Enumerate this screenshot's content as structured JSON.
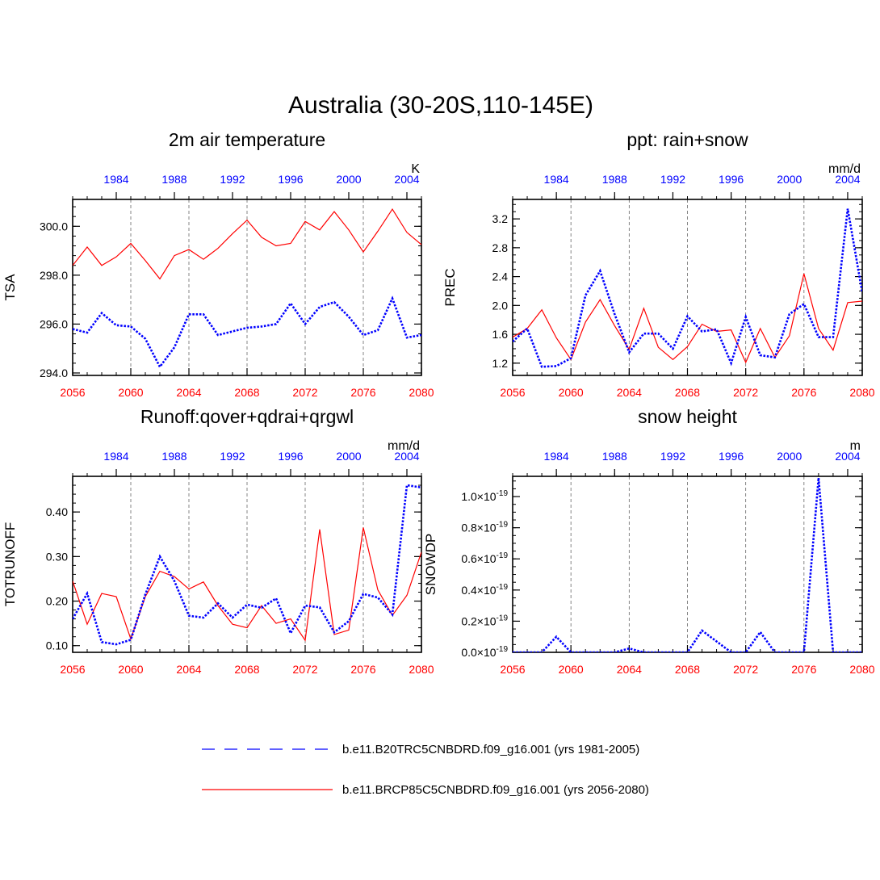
{
  "title": "Australia (30-20S,110-145E)",
  "colors": {
    "red": "#ff0000",
    "blue": "#0000ff",
    "axis": "#000000",
    "grid": "#666666"
  },
  "legend": [
    {
      "label": "b.e11.B20TRC5CNBDRD.f09_g16.001 (yrs 1981-2005)",
      "color": "#0000ff",
      "style": "dashed"
    },
    {
      "label": "b.e11.BRCP85C5CNBDRD.f09_g16.001 (yrs 2056-2080)",
      "color": "#ff0000",
      "style": "solid"
    }
  ],
  "chart_data": [
    {
      "type": "line",
      "title": "2m air temperature",
      "ylabel": "TSA",
      "units": "K",
      "ylim": [
        293.9,
        301.1
      ],
      "yticks": [
        294.0,
        296.0,
        298.0,
        300.0
      ],
      "ytick_labels": [
        "294.0",
        "296.0",
        "298.0",
        "300.0"
      ],
      "yminor": 0.4,
      "xlim": [
        2056,
        2080
      ],
      "xticks_bottom": [
        2056,
        2060,
        2064,
        2068,
        2072,
        2076,
        2080
      ],
      "xticks_top": [
        1984,
        1988,
        1992,
        1996,
        2000,
        2004
      ],
      "grid_x": [
        2060,
        2064,
        2068,
        2072,
        2076
      ],
      "series": [
        {
          "name": "b.e11.BRCP85C5CNBDRD.f09_g16.001",
          "years": "2056-2080",
          "color": "red",
          "style": "solid",
          "values": [
            298.4,
            299.15,
            298.4,
            298.75,
            299.3,
            298.6,
            297.85,
            298.8,
            299.05,
            298.65,
            299.1,
            299.7,
            300.25,
            299.55,
            299.2,
            299.3,
            300.2,
            299.85,
            300.6,
            299.85,
            298.95,
            299.8,
            300.7,
            299.75,
            299.25
          ]
        },
        {
          "name": "b.e11.B20TRC5CNBDRD.f09_g16.001",
          "years": "1981-2005",
          "color": "blue",
          "style": "dashed",
          "values": [
            295.8,
            295.65,
            296.45,
            295.95,
            295.9,
            295.4,
            294.25,
            295.05,
            296.4,
            296.4,
            295.55,
            295.7,
            295.85,
            295.9,
            296.0,
            296.85,
            296.0,
            296.7,
            296.9,
            296.3,
            295.55,
            295.75,
            297.05,
            295.45,
            295.55
          ]
        }
      ]
    },
    {
      "type": "line",
      "title": "ppt: rain+snow",
      "ylabel": "PREC",
      "units": "mm/d",
      "ylim": [
        1.03,
        3.47
      ],
      "yticks": [
        1.2,
        1.6,
        2.0,
        2.4,
        2.8,
        3.2
      ],
      "ytick_labels": [
        "1.2",
        "1.6",
        "2.0",
        "2.4",
        "2.8",
        "3.2"
      ],
      "yminor": 0.1,
      "xlim": [
        2056,
        2080
      ],
      "xticks_bottom": [
        2056,
        2060,
        2064,
        2068,
        2072,
        2076,
        2080
      ],
      "xticks_top": [
        1984,
        1988,
        1992,
        1996,
        2000,
        2004
      ],
      "grid_x": [
        2060,
        2064,
        2068,
        2072,
        2076
      ],
      "series": [
        {
          "name": "b.e11.BRCP85C5CNBDRD.f09_g16.001",
          "years": "2056-2080",
          "color": "red",
          "style": "solid",
          "values": [
            1.56,
            1.68,
            1.94,
            1.55,
            1.25,
            1.77,
            2.08,
            1.72,
            1.39,
            1.96,
            1.42,
            1.25,
            1.43,
            1.74,
            1.64,
            1.66,
            1.21,
            1.68,
            1.28,
            1.58,
            2.44,
            1.68,
            1.38,
            2.04,
            2.06
          ]
        },
        {
          "name": "b.e11.B20TRC5CNBDRD.f09_g16.001",
          "years": "1981-2005",
          "color": "blue",
          "style": "dashed",
          "values": [
            1.5,
            1.68,
            1.15,
            1.16,
            1.27,
            2.14,
            2.48,
            1.88,
            1.35,
            1.61,
            1.61,
            1.4,
            1.85,
            1.64,
            1.67,
            1.2,
            1.84,
            1.31,
            1.28,
            1.88,
            2.02,
            1.56,
            1.56,
            3.34,
            2.18
          ]
        }
      ]
    },
    {
      "type": "line",
      "title": "Runoff:qover+qdrai+qrgwl",
      "ylabel": "TOTRUNOFF",
      "units": "mm/d",
      "ylim": [
        0.085,
        0.48
      ],
      "yticks": [
        0.1,
        0.2,
        0.3,
        0.4
      ],
      "ytick_labels": [
        "0.10",
        "0.20",
        "0.30",
        "0.40"
      ],
      "yminor": 0.02,
      "xlim": [
        2056,
        2080
      ],
      "xticks_bottom": [
        2056,
        2060,
        2064,
        2068,
        2072,
        2076,
        2080
      ],
      "xticks_top": [
        1984,
        1988,
        1992,
        1996,
        2000,
        2004
      ],
      "grid_x": [
        2060,
        2064,
        2068,
        2072,
        2076
      ],
      "series": [
        {
          "name": "b.e11.BRCP85C5CNBDRD.f09_g16.001",
          "years": "2056-2080",
          "color": "red",
          "style": "solid",
          "values": [
            0.245,
            0.148,
            0.217,
            0.21,
            0.115,
            0.21,
            0.267,
            0.255,
            0.227,
            0.243,
            0.19,
            0.148,
            0.14,
            0.19,
            0.15,
            0.16,
            0.112,
            0.361,
            0.125,
            0.135,
            0.365,
            0.225,
            0.168,
            0.213,
            0.31
          ]
        },
        {
          "name": "b.e11.B20TRC5CNBDRD.f09_g16.001",
          "years": "1981-2005",
          "color": "blue",
          "style": "dashed",
          "values": [
            0.16,
            0.217,
            0.108,
            0.103,
            0.113,
            0.215,
            0.3,
            0.245,
            0.167,
            0.163,
            0.195,
            0.163,
            0.192,
            0.185,
            0.206,
            0.128,
            0.19,
            0.186,
            0.13,
            0.155,
            0.216,
            0.208,
            0.17,
            0.46,
            0.455
          ]
        }
      ]
    },
    {
      "type": "line",
      "title": "snow height",
      "ylabel": "SNOWDP",
      "units": "m",
      "yscale": "x10^-19",
      "ylim": [
        0.0,
        1.13
      ],
      "yticks": [
        0.0,
        0.2,
        0.4,
        0.6,
        0.8,
        1.0
      ],
      "ytick_labels": [
        "0.0",
        "0.2",
        "0.4",
        "0.6",
        "0.8",
        "1.0"
      ],
      "ytick_suffix": "×10",
      "ytick_exponent": "-19",
      "yminor": 0.05,
      "xlim": [
        2056,
        2080
      ],
      "xticks_bottom": [
        2056,
        2060,
        2064,
        2068,
        2072,
        2076,
        2080
      ],
      "xticks_top": [
        1984,
        1988,
        1992,
        1996,
        2000,
        2004
      ],
      "grid_x": [
        2060,
        2064,
        2068,
        2072,
        2076
      ],
      "series": [
        {
          "name": "b.e11.B20TRC5CNBDRD.f09_g16.001",
          "years": "1981-2005",
          "color": "blue",
          "style": "dashed",
          "values": [
            0.0,
            0.0,
            0.0,
            0.1,
            0.0,
            0.0,
            0.0,
            0.0,
            0.025,
            0.0,
            0.0,
            0.0,
            0.0,
            0.14,
            0.07,
            0.0,
            0.0,
            0.13,
            0.0,
            0.0,
            0.0,
            1.12,
            0.0,
            0.0,
            0.0
          ]
        }
      ]
    }
  ]
}
